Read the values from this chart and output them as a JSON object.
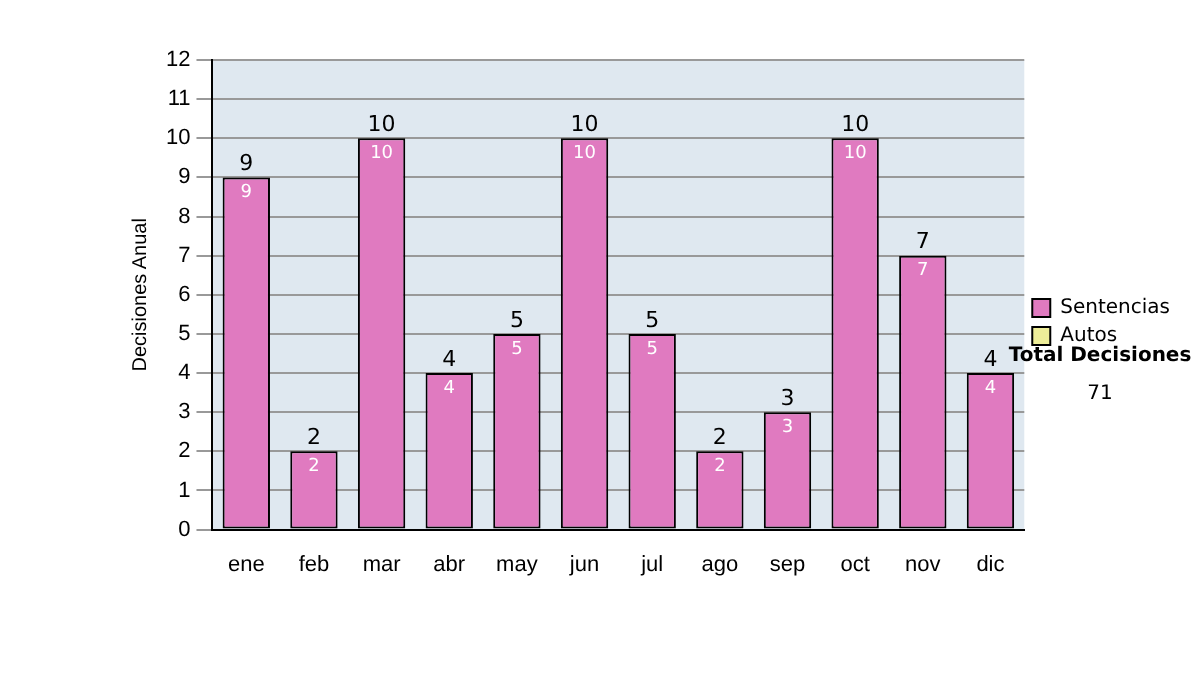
{
  "chart_data": {
    "type": "bar",
    "ylabel": "Decisiones Anual",
    "stacked": true,
    "categories": [
      "ene",
      "feb",
      "mar",
      "abr",
      "may",
      "jun",
      "jul",
      "ago",
      "sep",
      "oct",
      "nov",
      "dic"
    ],
    "series": [
      {
        "name": "Sentencias",
        "color": "#e07ac0",
        "values": [
          9,
          2,
          10,
          4,
          5,
          10,
          5,
          2,
          3,
          10,
          7,
          4
        ],
        "value_labels": [
          "9",
          "2",
          "10",
          "4",
          "5",
          "10",
          "5",
          "2",
          "3",
          "10",
          "7",
          "4"
        ]
      },
      {
        "name": "Autos",
        "color": "#eeee99",
        "values": [
          0,
          0,
          0,
          0,
          0,
          0,
          0,
          0,
          0,
          0,
          0,
          0
        ]
      }
    ],
    "totals": [
      "9",
      "2",
      "10",
      "4",
      "5",
      "10",
      "5",
      "2",
      "3",
      "10",
      "7",
      "4"
    ],
    "ylim": [
      0,
      12
    ],
    "yticks": [
      0,
      1,
      2,
      3,
      4,
      5,
      6,
      7,
      8,
      9,
      10,
      11,
      12
    ],
    "grid": "y",
    "legend": "right",
    "annotations": [
      "Total Decisiones",
      "71"
    ]
  }
}
